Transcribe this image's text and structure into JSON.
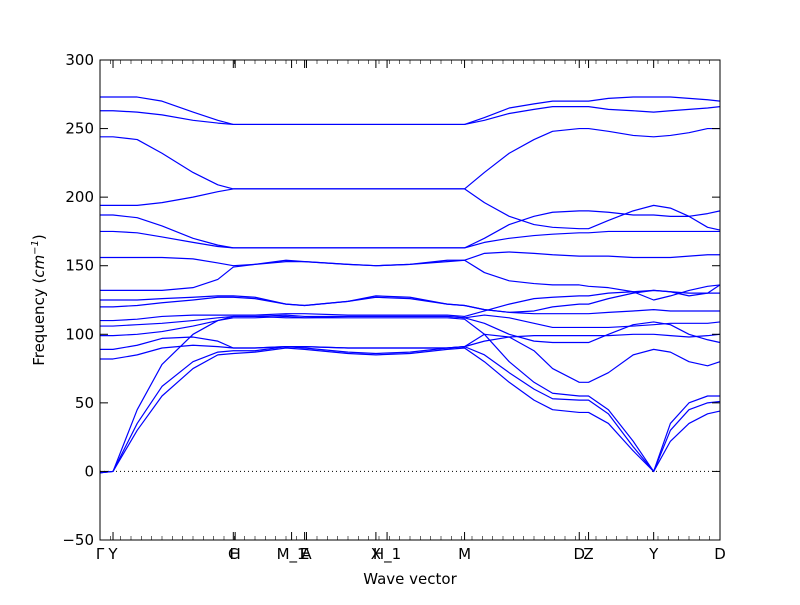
{
  "chart_data": {
    "type": "line",
    "title": "",
    "xlabel": "Wave vector",
    "ylabel_text": "Frequency (",
    "ylabel_unit_base": "cm",
    "ylabel_unit_exp": "−1",
    "ylabel_close": ")",
    "ylim": [
      -50,
      300
    ],
    "xlim": [
      0,
      1
    ],
    "yticks": [
      -50,
      0,
      50,
      100,
      150,
      200,
      250,
      300
    ],
    "ytick_labels": [
      "−50",
      "0",
      "50",
      "100",
      "150",
      "200",
      "250",
      "300"
    ],
    "grid": false,
    "legend": "none",
    "line_color": "#0000ff",
    "zero_line_color": "#000000",
    "kpoints": [
      {
        "label": "Γ",
        "x": 0.0
      },
      {
        "label": "Y",
        "x": 0.021
      },
      {
        "label": "C",
        "x": 0.215
      },
      {
        "label": "H",
        "x": 0.218
      },
      {
        "label": "M_1",
        "x": 0.309
      },
      {
        "label": "E",
        "x": 0.33
      },
      {
        "label": "A",
        "x": 0.333
      },
      {
        "label": "X",
        "x": 0.445
      },
      {
        "label": "H_1",
        "x": 0.463
      },
      {
        "label": "M",
        "x": 0.588
      },
      {
        "label": "D",
        "x": 0.773
      },
      {
        "label": "Z",
        "x": 0.788
      },
      {
        "label": "Y",
        "x": 0.893
      },
      {
        "label": "D",
        "x": 1.0
      }
    ],
    "series": [
      {
        "x": [
          0.0,
          0.021,
          0.06,
          0.1,
          0.15,
          0.19,
          0.215,
          0.25,
          0.3,
          0.33,
          0.4,
          0.445,
          0.5,
          0.56,
          0.588,
          0.62,
          0.66,
          0.7,
          0.73,
          0.773,
          0.788,
          0.82,
          0.86,
          0.893,
          0.92,
          0.95,
          0.98,
          1.0
        ],
        "values": [
          -1,
          0,
          30,
          55,
          75,
          85,
          86,
          87,
          90,
          89,
          86,
          85,
          86,
          89,
          90,
          80,
          65,
          52,
          45,
          43,
          43,
          35,
          15,
          0,
          22,
          35,
          42,
          44
        ]
      },
      {
        "x": [
          0.0,
          0.021,
          0.06,
          0.1,
          0.15,
          0.19,
          0.215,
          0.25,
          0.3,
          0.33,
          0.4,
          0.445,
          0.5,
          0.56,
          0.588,
          0.62,
          0.66,
          0.7,
          0.73,
          0.773,
          0.788,
          0.82,
          0.86,
          0.893,
          0.92,
          0.95,
          0.98,
          1.0
        ],
        "values": [
          -1,
          0,
          35,
          62,
          80,
          87,
          88,
          88,
          91,
          90,
          87,
          86,
          87,
          90,
          91,
          85,
          72,
          60,
          53,
          52,
          52,
          42,
          18,
          0,
          30,
          45,
          50,
          51
        ]
      },
      {
        "x": [
          0.0,
          0.021,
          0.06,
          0.1,
          0.15,
          0.19,
          0.215,
          0.25,
          0.3,
          0.33,
          0.4,
          0.445,
          0.5,
          0.56,
          0.588,
          0.62,
          0.66,
          0.7,
          0.73,
          0.773,
          0.788,
          0.82,
          0.86,
          0.893,
          0.92,
          0.95,
          0.98,
          1.0
        ],
        "values": [
          -1,
          0,
          45,
          78,
          100,
          110,
          112,
          112,
          113,
          112,
          112,
          112,
          112,
          112,
          111,
          100,
          80,
          65,
          57,
          55,
          55,
          45,
          22,
          0,
          35,
          50,
          55,
          55
        ]
      },
      {
        "x": [
          0.0,
          0.021,
          0.06,
          0.1,
          0.15,
          0.19,
          0.215,
          0.25,
          0.3,
          0.33,
          0.4,
          0.445,
          0.5,
          0.56,
          0.588,
          0.62,
          0.66,
          0.7,
          0.73,
          0.773,
          0.788,
          0.82,
          0.86,
          0.893,
          0.92,
          0.95,
          0.98,
          1.0
        ],
        "values": [
          82,
          82,
          85,
          90,
          92,
          91,
          90,
          90,
          91,
          91,
          90,
          90,
          90,
          90,
          91,
          95,
          98,
          99,
          99,
          99,
          99,
          99,
          100,
          100,
          99,
          98,
          99,
          100
        ]
      },
      {
        "x": [
          0.0,
          0.021,
          0.06,
          0.1,
          0.15,
          0.19,
          0.215,
          0.25,
          0.3,
          0.33,
          0.4,
          0.445,
          0.5,
          0.56,
          0.588,
          0.62,
          0.66,
          0.7,
          0.73,
          0.773,
          0.788,
          0.82,
          0.86,
          0.893,
          0.92,
          0.95,
          0.98,
          1.0
        ],
        "values": [
          89,
          89,
          92,
          97,
          98,
          95,
          90,
          90,
          91,
          91,
          90,
          90,
          90,
          90,
          91,
          100,
          98,
          88,
          75,
          65,
          65,
          72,
          85,
          89,
          87,
          80,
          77,
          80
        ]
      },
      {
        "x": [
          0.0,
          0.021,
          0.06,
          0.1,
          0.15,
          0.19,
          0.215,
          0.25,
          0.3,
          0.33,
          0.4,
          0.445,
          0.5,
          0.56,
          0.588,
          0.62,
          0.66,
          0.7,
          0.73,
          0.773,
          0.788,
          0.82,
          0.86,
          0.893,
          0.92,
          0.95,
          0.98,
          1.0
        ],
        "values": [
          99,
          99,
          100,
          102,
          106,
          110,
          113,
          113,
          112,
          112,
          113,
          113,
          113,
          113,
          112,
          108,
          100,
          95,
          94,
          94,
          94,
          100,
          107,
          109,
          107,
          100,
          96,
          94
        ]
      },
      {
        "x": [
          0.0,
          0.021,
          0.06,
          0.1,
          0.15,
          0.19,
          0.215,
          0.25,
          0.3,
          0.33,
          0.4,
          0.445,
          0.5,
          0.56,
          0.588,
          0.62,
          0.66,
          0.7,
          0.73,
          0.773,
          0.788,
          0.82,
          0.86,
          0.893,
          0.92,
          0.95,
          0.98,
          1.0
        ],
        "values": [
          106,
          106,
          107,
          108,
          110,
          112,
          113,
          113,
          114,
          113,
          113,
          113,
          113,
          113,
          112,
          114,
          112,
          108,
          105,
          105,
          105,
          105,
          106,
          107,
          108,
          108,
          108,
          109
        ]
      },
      {
        "x": [
          0.0,
          0.021,
          0.06,
          0.1,
          0.15,
          0.19,
          0.215,
          0.25,
          0.3,
          0.33,
          0.4,
          0.445,
          0.5,
          0.56,
          0.588,
          0.62,
          0.66,
          0.7,
          0.73,
          0.773,
          0.788,
          0.82,
          0.86,
          0.893,
          0.92,
          0.95,
          0.98,
          1.0
        ],
        "values": [
          110,
          110,
          111,
          113,
          114,
          114,
          114,
          114,
          115,
          115,
          114,
          114,
          114,
          114,
          113,
          117,
          122,
          126,
          127,
          128,
          128,
          130,
          131,
          132,
          131,
          130,
          130,
          130
        ]
      },
      {
        "x": [
          0.0,
          0.021,
          0.06,
          0.1,
          0.15,
          0.19,
          0.215,
          0.25,
          0.3,
          0.33,
          0.4,
          0.445,
          0.5,
          0.56,
          0.588,
          0.62,
          0.66,
          0.7,
          0.73,
          0.773,
          0.788,
          0.82,
          0.86,
          0.893,
          0.92,
          0.95,
          0.98,
          1.0
        ],
        "values": [
          120,
          120,
          121,
          123,
          125,
          127,
          127,
          126,
          122,
          121,
          124,
          127,
          126,
          122,
          121,
          118,
          116,
          115,
          115,
          115,
          115,
          116,
          117,
          118,
          117,
          117,
          117,
          117
        ]
      },
      {
        "x": [
          0.0,
          0.021,
          0.06,
          0.1,
          0.15,
          0.19,
          0.215,
          0.25,
          0.3,
          0.33,
          0.4,
          0.445,
          0.5,
          0.56,
          0.588,
          0.62,
          0.66,
          0.7,
          0.73,
          0.773,
          0.788,
          0.82,
          0.86,
          0.893,
          0.92,
          0.95,
          0.98,
          1.0
        ],
        "values": [
          125,
          125,
          125,
          126,
          127,
          128,
          128,
          127,
          122,
          121,
          124,
          128,
          127,
          122,
          121,
          118,
          116,
          117,
          120,
          122,
          122,
          126,
          130,
          132,
          131,
          128,
          130,
          136
        ]
      },
      {
        "x": [
          0.0,
          0.021,
          0.06,
          0.1,
          0.15,
          0.19,
          0.215,
          0.25,
          0.3,
          0.33,
          0.4,
          0.445,
          0.5,
          0.56,
          0.588,
          0.62,
          0.66,
          0.7,
          0.73,
          0.773,
          0.788,
          0.82,
          0.86,
          0.893,
          0.92,
          0.95,
          0.98,
          1.0
        ],
        "values": [
          132,
          132,
          132,
          132,
          134,
          140,
          149,
          151,
          153,
          153,
          151,
          150,
          151,
          153,
          154,
          145,
          139,
          137,
          136,
          136,
          135,
          134,
          131,
          125,
          128,
          132,
          135,
          136
        ]
      },
      {
        "x": [
          0.0,
          0.021,
          0.06,
          0.1,
          0.15,
          0.19,
          0.215,
          0.25,
          0.3,
          0.33,
          0.4,
          0.445,
          0.5,
          0.56,
          0.588,
          0.62,
          0.66,
          0.7,
          0.73,
          0.773,
          0.788,
          0.82,
          0.86,
          0.893,
          0.92,
          0.95,
          0.98,
          1.0
        ],
        "values": [
          156,
          156,
          156,
          156,
          155,
          152,
          150,
          151,
          154,
          153,
          151,
          150,
          151,
          154,
          154,
          159,
          160,
          159,
          158,
          157,
          157,
          157,
          156,
          156,
          156,
          157,
          158,
          158
        ]
      },
      {
        "x": [
          0.0,
          0.021,
          0.06,
          0.1,
          0.15,
          0.19,
          0.215,
          0.25,
          0.3,
          0.33,
          0.4,
          0.445,
          0.5,
          0.56,
          0.588,
          0.62,
          0.66,
          0.7,
          0.73,
          0.773,
          0.788,
          0.82,
          0.86,
          0.893,
          0.92,
          0.95,
          0.98,
          1.0
        ],
        "values": [
          175,
          175,
          174,
          171,
          167,
          164,
          163,
          163,
          163,
          163,
          163,
          163,
          163,
          163,
          163,
          167,
          170,
          172,
          173,
          174,
          174,
          175,
          175,
          175,
          175,
          175,
          175,
          175
        ]
      },
      {
        "x": [
          0.0,
          0.021,
          0.06,
          0.1,
          0.15,
          0.19,
          0.215,
          0.25,
          0.3,
          0.33,
          0.4,
          0.445,
          0.5,
          0.56,
          0.588,
          0.62,
          0.66,
          0.7,
          0.73,
          0.773,
          0.788,
          0.82,
          0.86,
          0.893,
          0.92,
          0.95,
          0.98,
          1.0
        ],
        "values": [
          187,
          187,
          185,
          179,
          170,
          165,
          163,
          163,
          163,
          163,
          163,
          163,
          163,
          163,
          163,
          170,
          180,
          186,
          189,
          190,
          190,
          189,
          187,
          187,
          186,
          186,
          188,
          190
        ]
      },
      {
        "x": [
          0.0,
          0.021,
          0.06,
          0.1,
          0.15,
          0.19,
          0.215,
          0.25,
          0.3,
          0.33,
          0.4,
          0.445,
          0.5,
          0.56,
          0.588,
          0.62,
          0.66,
          0.7,
          0.73,
          0.773,
          0.788,
          0.82,
          0.86,
          0.893,
          0.92,
          0.95,
          0.98,
          1.0
        ],
        "values": [
          194,
          194,
          194,
          196,
          200,
          204,
          206,
          206,
          206,
          206,
          206,
          206,
          206,
          206,
          206,
          196,
          186,
          180,
          178,
          177,
          177,
          183,
          190,
          194,
          192,
          186,
          178,
          176
        ]
      },
      {
        "x": [
          0.0,
          0.021,
          0.06,
          0.1,
          0.15,
          0.19,
          0.215,
          0.25,
          0.3,
          0.33,
          0.4,
          0.445,
          0.5,
          0.56,
          0.588,
          0.62,
          0.66,
          0.7,
          0.73,
          0.773,
          0.788,
          0.82,
          0.86,
          0.893,
          0.92,
          0.95,
          0.98,
          1.0
        ],
        "values": [
          244,
          244,
          242,
          232,
          218,
          209,
          206,
          206,
          206,
          206,
          206,
          206,
          206,
          206,
          206,
          218,
          232,
          242,
          248,
          250,
          250,
          248,
          245,
          244,
          245,
          247,
          250,
          250
        ]
      },
      {
        "x": [
          0.0,
          0.021,
          0.06,
          0.1,
          0.15,
          0.19,
          0.215,
          0.25,
          0.3,
          0.33,
          0.4,
          0.445,
          0.5,
          0.56,
          0.588,
          0.62,
          0.66,
          0.7,
          0.73,
          0.773,
          0.788,
          0.82,
          0.86,
          0.893,
          0.92,
          0.95,
          0.98,
          1.0
        ],
        "values": [
          263,
          263,
          262,
          260,
          256,
          254,
          253,
          253,
          253,
          253,
          253,
          253,
          253,
          253,
          253,
          256,
          261,
          264,
          266,
          266,
          266,
          264,
          263,
          262,
          263,
          264,
          265,
          266
        ]
      },
      {
        "x": [
          0.0,
          0.021,
          0.06,
          0.1,
          0.15,
          0.19,
          0.215,
          0.25,
          0.3,
          0.33,
          0.4,
          0.445,
          0.5,
          0.56,
          0.588,
          0.62,
          0.66,
          0.7,
          0.73,
          0.773,
          0.788,
          0.82,
          0.86,
          0.893,
          0.92,
          0.95,
          0.98,
          1.0
        ],
        "values": [
          273,
          273,
          273,
          270,
          262,
          256,
          253,
          253,
          253,
          253,
          253,
          253,
          253,
          253,
          253,
          258,
          265,
          268,
          270,
          270,
          270,
          272,
          273,
          273,
          273,
          272,
          271,
          270
        ]
      }
    ]
  }
}
